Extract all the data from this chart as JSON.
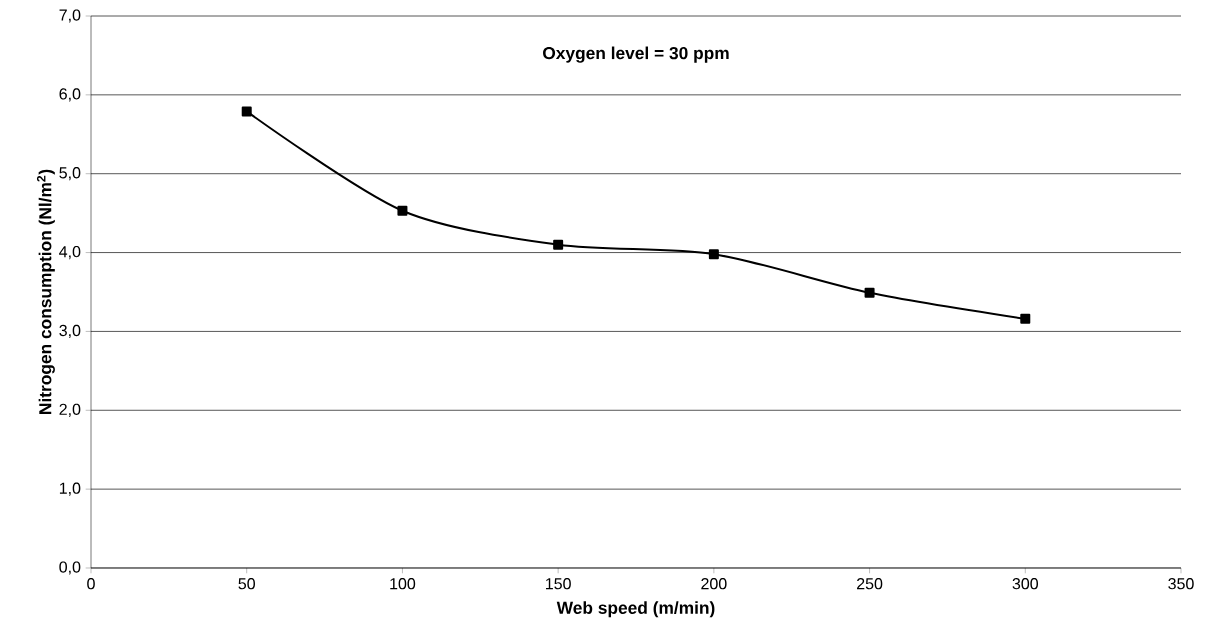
{
  "chart_data": {
    "type": "line",
    "xlabel": "Web speed (m/min)",
    "ylabel": "Nitrogen consumption (Nl/m$^{2}$)",
    "annotations": [
      "Oxygen level  = 30 ppm"
    ],
    "x": [
      50,
      100,
      150,
      200,
      250,
      300
    ],
    "series": [
      {
        "color": "#000000",
        "values": [
          5.79,
          4.53,
          4.1,
          3.98,
          3.49,
          3.16
        ]
      }
    ],
    "xlim": [
      0,
      350
    ],
    "xticks": [
      0,
      50,
      100,
      150,
      200,
      250,
      300,
      350
    ],
    "ylim": [
      0,
      7
    ],
    "yticks": [
      {
        "value": 0,
        "label": "0,0"
      },
      {
        "value": 1,
        "label": "1,0"
      },
      {
        "value": 2,
        "label": "2,0"
      },
      {
        "value": 3,
        "label": "3,0"
      },
      {
        "value": 4,
        "label": "4,0"
      },
      {
        "value": 5,
        "label": "5,0"
      },
      {
        "value": 6,
        "label": "6,0"
      },
      {
        "value": 7,
        "label": "7,0"
      }
    ],
    "grid": "y",
    "marker": "square",
    "line_style": "solid"
  }
}
